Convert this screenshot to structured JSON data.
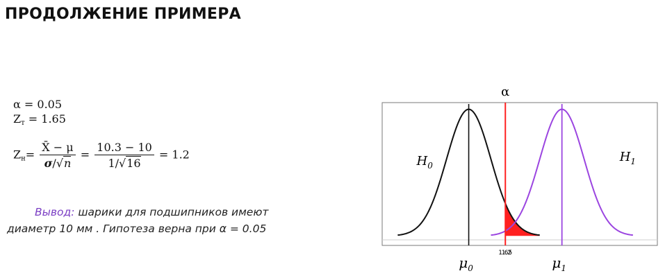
{
  "slide": {
    "title": "ПРОДОЛЖЕНИЕ ПРИМЕРА"
  },
  "formulas": {
    "alpha_line": "α = 0.05",
    "zt_symbol": "Z",
    "zt_sub": "т",
    "zt_value": "= 1.65",
    "zn_symbol": "Z",
    "zn_sub": "н",
    "zn_eq": "=",
    "frac1_num": "X̄ − μ",
    "frac1_den_sigma": "σ",
    "frac1_den_slash": "/√",
    "frac1_den_n": "n",
    "eq2": "=",
    "frac2_num": "10.3 − 10",
    "frac2_den_pre": "1/√",
    "frac2_den_val": "16",
    "result": "= 1.2"
  },
  "conclusion": {
    "lead": "Вывод:",
    "line1": " шарики для подшипников имеют",
    "line2": "диаметр 10 мм . Гипотеза верна при α = 0.05"
  },
  "chart_data": {
    "type": "line",
    "series": [
      {
        "name": "H0",
        "mean": 0,
        "sd": 1,
        "color": "#111111"
      },
      {
        "name": "H1",
        "mean": 4.2,
        "sd": 1,
        "color": "#9b45e0"
      }
    ],
    "alpha_label": "α",
    "critical_value": 1.65,
    "critical_value_label": "1.65",
    "observed_value": 1.2,
    "observed_value_label": "1.2",
    "mu0_label": "μ",
    "mu0_sub": "0",
    "mu1_label": "μ",
    "mu1_sub": "1",
    "h0_label": "H",
    "h0_sub": "0",
    "h1_label": "H",
    "h1_sub": "1",
    "xlim": [
      -3.9,
      8.5
    ],
    "ylim": [
      -0.03,
      0.42
    ],
    "rejection_color": "#ff2020",
    "critical_line_color": "#ff2020"
  }
}
